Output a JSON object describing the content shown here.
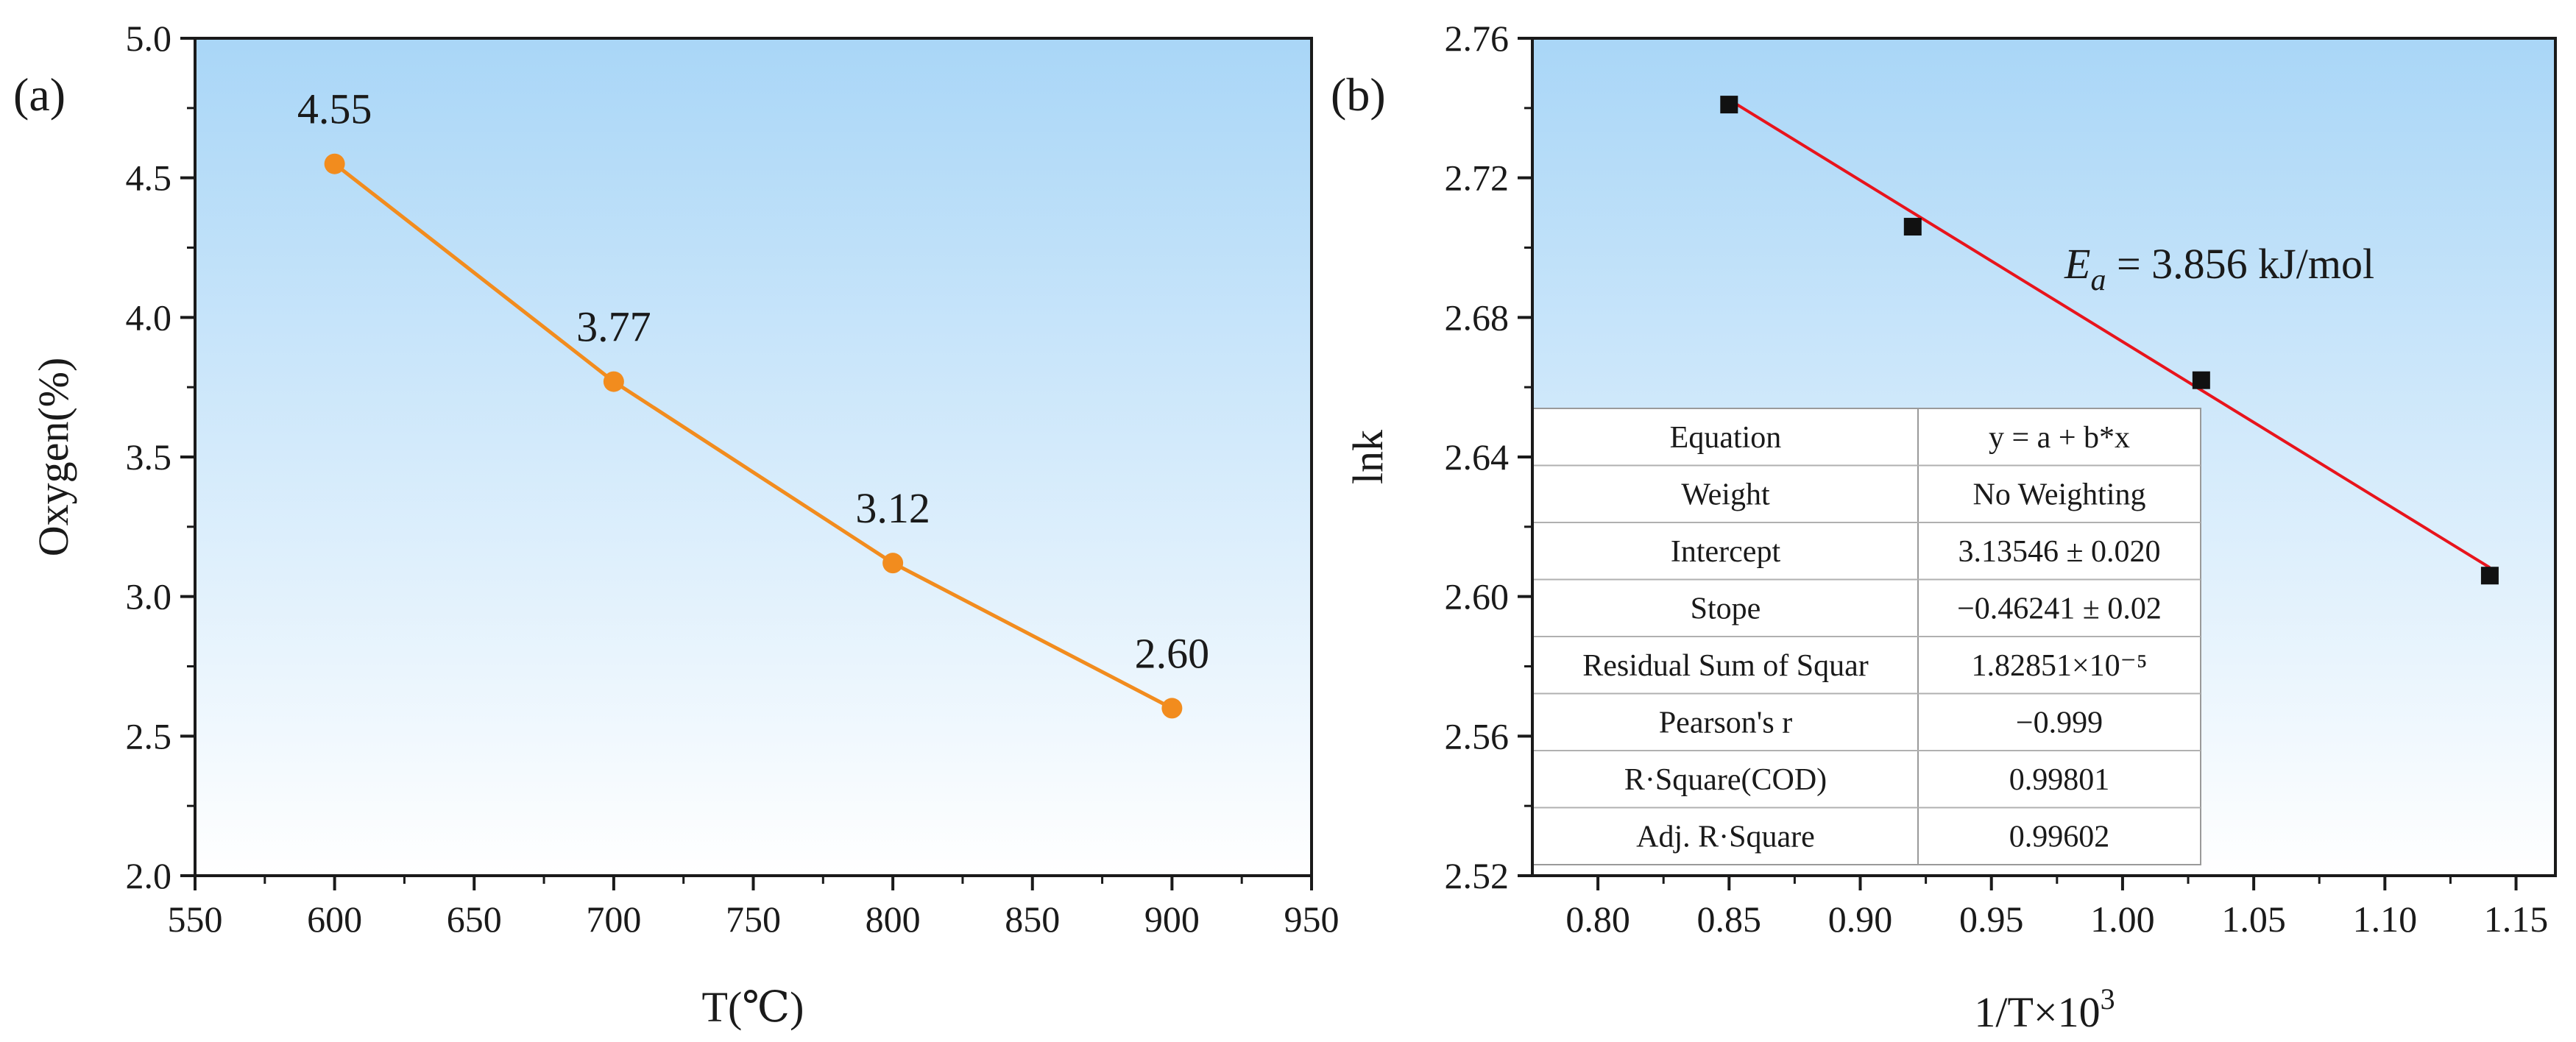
{
  "figure": {
    "panel_a_label": "(a)",
    "panel_b_label": "(b)"
  },
  "chart_data": [
    {
      "type": "line",
      "panel": "(a)",
      "xlabel": "T(℃)",
      "ylabel": "Oxygen(%)",
      "xlim": [
        550,
        950
      ],
      "ylim": [
        2.0,
        5.0
      ],
      "xticks": [
        "550",
        "600",
        "650",
        "700",
        "750",
        "800",
        "850",
        "900",
        "950"
      ],
      "yticks": [
        "2.0",
        "2.5",
        "3.0",
        "3.5",
        "4.0",
        "4.5",
        "5.0"
      ],
      "x": [
        600,
        700,
        800,
        900
      ],
      "y": [
        4.55,
        3.77,
        3.12,
        2.6
      ],
      "data_labels": [
        "4.55",
        "3.77",
        "3.12",
        "2.60"
      ],
      "line_color": "#f28c1e",
      "marker_color": "#f28c1e",
      "background_gradient": [
        "#a9d6f7",
        "#ffffff"
      ]
    },
    {
      "type": "scatter",
      "panel": "(b)",
      "xlabel": "1/T×10",
      "xlabel_sup": "3",
      "ylabel": "lnk",
      "xlim": [
        0.775,
        1.165
      ],
      "ylim": [
        2.52,
        2.76
      ],
      "xticks": [
        "0.80",
        "0.85",
        "0.90",
        "0.95",
        "1.00",
        "1.05",
        "1.10",
        "1.15"
      ],
      "yticks": [
        "2.52",
        "2.56",
        "2.60",
        "2.64",
        "2.68",
        "2.72",
        "2.76"
      ],
      "x": [
        0.85,
        0.92,
        1.03,
        1.14
      ],
      "y": [
        2.741,
        2.706,
        2.662,
        2.606
      ],
      "marker_color": "#111111",
      "fit_line": {
        "x": [
          0.85,
          1.14
        ],
        "y": [
          2.7424,
          2.6083
        ],
        "color": "#e8141c"
      },
      "annotation": {
        "symbol": "E",
        "subscript": "a",
        "text": " = 3.856 kJ/mol"
      },
      "background_gradient": [
        "#a9d6f7",
        "#ffffff"
      ],
      "table": [
        [
          "Equation",
          "y = a + b*x"
        ],
        [
          "Weight",
          "No Weighting"
        ],
        [
          "Intercept",
          "3.13546 ± 0.020"
        ],
        [
          "Stope",
          "−0.46241 ± 0.02"
        ],
        [
          "Residual Sum of Squar",
          "1.82851×10⁻⁵"
        ],
        [
          "Pearson's r",
          "−0.999"
        ],
        [
          "R·Square(COD)",
          "0.99801"
        ],
        [
          "Adj. R·Square",
          "0.99602"
        ]
      ]
    }
  ]
}
